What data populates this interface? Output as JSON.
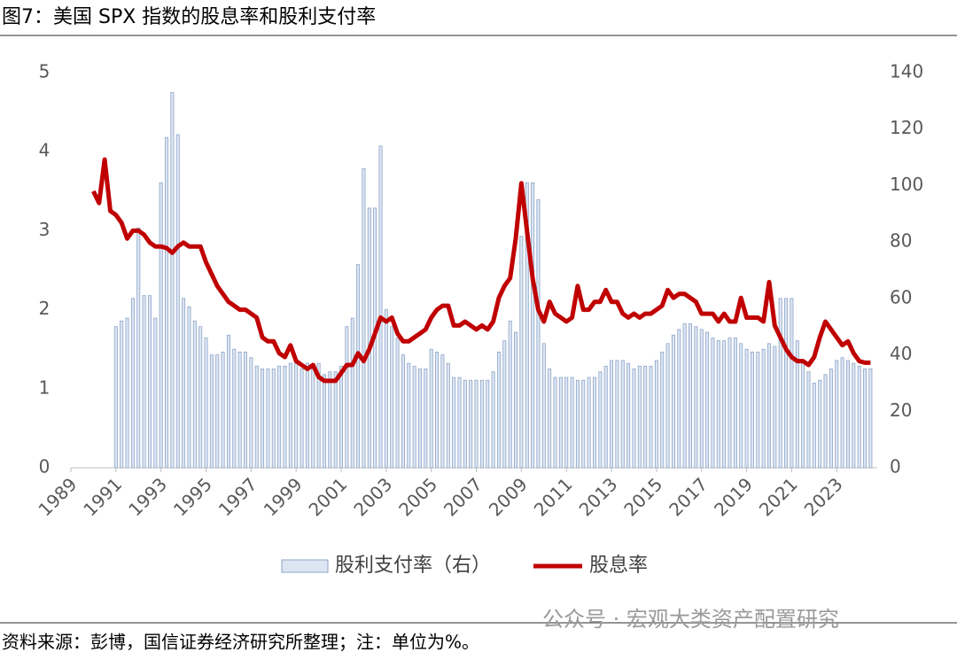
{
  "chart_data": {
    "type": "combo",
    "title": "图7：美国 SPX 指数的股息率和股利支付率",
    "x": [
      1990,
      1990.25,
      1990.5,
      1990.75,
      1991,
      1991.25,
      1991.5,
      1991.75,
      1992,
      1992.25,
      1992.5,
      1992.75,
      1993,
      1993.25,
      1993.5,
      1993.75,
      1994,
      1994.25,
      1994.5,
      1994.75,
      1995,
      1995.25,
      1995.5,
      1995.75,
      1996,
      1996.25,
      1996.5,
      1996.75,
      1997,
      1997.25,
      1997.5,
      1997.75,
      1998,
      1998.25,
      1998.5,
      1998.75,
      1999,
      1999.25,
      1999.5,
      1999.75,
      2000,
      2000.25,
      2000.5,
      2000.75,
      2001,
      2001.25,
      2001.5,
      2001.75,
      2002,
      2002.25,
      2002.5,
      2002.75,
      2003,
      2003.25,
      2003.5,
      2003.75,
      2004,
      2004.25,
      2004.5,
      2004.75,
      2005,
      2005.25,
      2005.5,
      2005.75,
      2006,
      2006.25,
      2006.5,
      2006.75,
      2007,
      2007.25,
      2007.5,
      2007.75,
      2008,
      2008.25,
      2008.5,
      2008.75,
      2009,
      2009.25,
      2009.5,
      2009.75,
      2010,
      2010.25,
      2010.5,
      2010.75,
      2011,
      2011.25,
      2011.5,
      2011.75,
      2012,
      2012.25,
      2012.5,
      2012.75,
      2013,
      2013.25,
      2013.5,
      2013.75,
      2014,
      2014.25,
      2014.5,
      2014.75,
      2015,
      2015.25,
      2015.5,
      2015.75,
      2016,
      2016.25,
      2016.5,
      2016.75,
      2017,
      2017.25,
      2017.5,
      2017.75,
      2018,
      2018.25,
      2018.5,
      2018.75,
      2019,
      2019.25,
      2019.5,
      2019.75,
      2020,
      2020.25,
      2020.5,
      2020.75,
      2021,
      2021.25,
      2021.5,
      2021.75,
      2022,
      2022.25,
      2022.5,
      2022.75,
      2023,
      2023.25,
      2023.5,
      2023.75,
      2024,
      2024.25,
      2024.5
    ],
    "series": [
      {
        "name": "股利支付率（右）",
        "type": "bar",
        "axis": "y2",
        "color": "#dce6f2",
        "edge_color": "#8ea4c8",
        "values": [
          null,
          null,
          null,
          null,
          50,
          52,
          53,
          60,
          85,
          61,
          61,
          53,
          101,
          117,
          133,
          118,
          60,
          57,
          52,
          50,
          46,
          40,
          40,
          41,
          47,
          42,
          41,
          41,
          39,
          36,
          35,
          35,
          35,
          36,
          36,
          37,
          37,
          35,
          37,
          35,
          37,
          33,
          34,
          34,
          36,
          50,
          53,
          72,
          106,
          92,
          92,
          114,
          56,
          50,
          46,
          40,
          37,
          36,
          35,
          35,
          42,
          41,
          40,
          37,
          32,
          32,
          31,
          31,
          31,
          31,
          31,
          34,
          41,
          45,
          52,
          48,
          82,
          101,
          101,
          95,
          44,
          35,
          32,
          32,
          32,
          32,
          31,
          31,
          32,
          32,
          34,
          36,
          38,
          38,
          38,
          37,
          35,
          36,
          36,
          36,
          38,
          41,
          44,
          47,
          49,
          51,
          51,
          50,
          49,
          48,
          46,
          45,
          45,
          46,
          46,
          44,
          42,
          41,
          41,
          42,
          44,
          43,
          60,
          60,
          60,
          45,
          38,
          34,
          30,
          31,
          33,
          35,
          38,
          39,
          38,
          37,
          36,
          35,
          35
        ]
      },
      {
        "name": "股息率",
        "type": "line",
        "color": "#c00000",
        "values": [
          3.5,
          3.35,
          3.9,
          3.25,
          3.2,
          3.1,
          2.9,
          3.0,
          3.0,
          2.95,
          2.85,
          2.8,
          2.8,
          2.78,
          2.72,
          2.8,
          2.85,
          2.8,
          2.8,
          2.8,
          2.6,
          2.45,
          2.3,
          2.2,
          2.1,
          2.05,
          2.0,
          2.0,
          1.95,
          1.9,
          1.65,
          1.6,
          1.6,
          1.45,
          1.4,
          1.55,
          1.35,
          1.3,
          1.25,
          1.3,
          1.15,
          1.1,
          1.1,
          1.1,
          1.2,
          1.3,
          1.3,
          1.45,
          1.35,
          1.5,
          1.7,
          1.9,
          1.85,
          1.9,
          1.7,
          1.6,
          1.6,
          1.65,
          1.7,
          1.75,
          1.9,
          2.0,
          2.05,
          2.05,
          1.8,
          1.8,
          1.85,
          1.8,
          1.75,
          1.8,
          1.75,
          1.85,
          2.15,
          2.3,
          2.4,
          2.9,
          3.6,
          3.0,
          2.4,
          2.0,
          1.85,
          2.1,
          1.95,
          1.9,
          1.85,
          1.9,
          2.3,
          2.0,
          2.0,
          2.1,
          2.1,
          2.25,
          2.1,
          2.1,
          1.95,
          1.9,
          1.95,
          1.9,
          1.95,
          1.95,
          2.0,
          2.05,
          2.25,
          2.15,
          2.2,
          2.2,
          2.15,
          2.1,
          1.95,
          1.95,
          1.95,
          1.85,
          1.95,
          1.85,
          1.85,
          2.15,
          1.9,
          1.9,
          1.9,
          1.85,
          2.35,
          1.8,
          1.65,
          1.5,
          1.4,
          1.35,
          1.35,
          1.3,
          1.4,
          1.65,
          1.85,
          1.75,
          1.65,
          1.55,
          1.6,
          1.45,
          1.35,
          1.33,
          1.33
        ]
      }
    ],
    "xlim": [
      1989,
      2024.8
    ],
    "xticks": [
      1989,
      1991,
      1993,
      1995,
      1997,
      1999,
      2001,
      2003,
      2005,
      2007,
      2009,
      2011,
      2013,
      2015,
      2017,
      2019,
      2021,
      2023
    ],
    "ylim": [
      0,
      5
    ],
    "yticks": [
      0,
      1,
      2,
      3,
      4,
      5
    ],
    "y2lim": [
      0,
      140
    ],
    "y2ticks": [
      0,
      20,
      40,
      60,
      80,
      100,
      120,
      140
    ],
    "legend": "bottom"
  },
  "source": "资料来源：彭博，国信证券经济研究所整理；注：单位为%。",
  "watermark": "公众号 · 宏观大类资产配置研究"
}
